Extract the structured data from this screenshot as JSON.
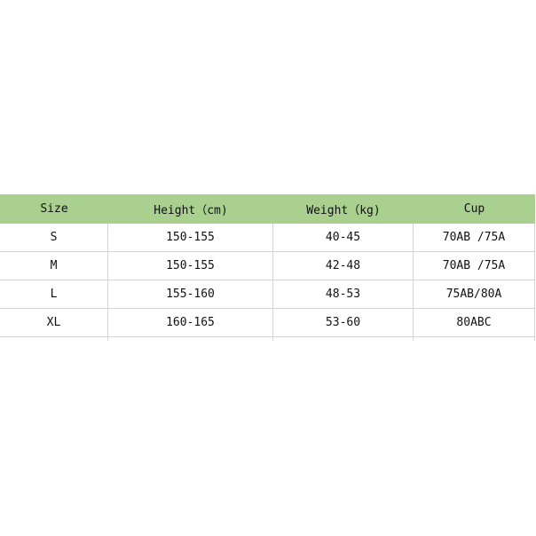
{
  "table": {
    "header_color": "#a9d08e",
    "headers": [
      "Size",
      "Height（cm)",
      "Weight（kg)",
      "Cup"
    ],
    "rows": [
      [
        "S",
        "150-155",
        "40-45",
        "70AB /75A"
      ],
      [
        "M",
        "150-155",
        "42-48",
        "70AB /75A"
      ],
      [
        "L",
        "155-160",
        "48-53",
        "75AB/80A"
      ],
      [
        "XL",
        "160-165",
        "53-60",
        "80ABC"
      ]
    ]
  }
}
